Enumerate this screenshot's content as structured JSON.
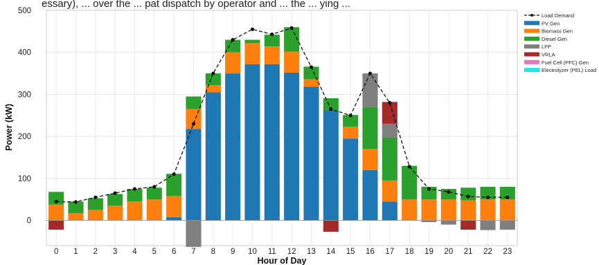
{
  "chart_data": {
    "type": "bar",
    "xlabel": "Hour of Day",
    "ylabel": "Power (kW)",
    "ylim": [
      -60,
      500
    ],
    "yticks": [
      0,
      100,
      200,
      300,
      400,
      500
    ],
    "grid": true,
    "legend_position": "right",
    "partial_text": "essary), ... over the ... pat dispatch by operator and ... the ... ying ...",
    "categories": [
      "0",
      "1",
      "2",
      "3",
      "4",
      "5",
      "6",
      "7",
      "8",
      "9",
      "10",
      "11",
      "12",
      "13",
      "14",
      "15",
      "16",
      "17",
      "18",
      "19",
      "20",
      "21",
      "22",
      "23"
    ],
    "series": [
      {
        "name": "PV Gen",
        "color": "#1f77b4",
        "values": [
          0,
          0,
          0,
          0,
          0,
          0,
          8,
          218,
          305,
          350,
          372,
          372,
          352,
          318,
          263,
          195,
          120,
          45,
          0,
          0,
          0,
          0,
          0,
          0
        ]
      },
      {
        "name": "Biomass Gen",
        "color": "#ff7f0e",
        "values": [
          38,
          17,
          25,
          35,
          45,
          50,
          50,
          47,
          17,
          50,
          50,
          42,
          50,
          18,
          0,
          28,
          50,
          50,
          50,
          50,
          50,
          48,
          50,
          50
        ]
      },
      {
        "name": "Diesel Gen",
        "color": "#2ca02c",
        "values": [
          30,
          28,
          28,
          28,
          30,
          28,
          53,
          30,
          28,
          30,
          8,
          28,
          58,
          30,
          28,
          28,
          100,
          102,
          80,
          30,
          25,
          30,
          30,
          30
        ]
      },
      {
        "name": "LFP",
        "color": "#7f7f7f",
        "values": [
          0,
          0,
          0,
          0,
          0,
          0,
          0,
          -63,
          0,
          0,
          0,
          0,
          0,
          0,
          0,
          0,
          80,
          33,
          0,
          -4,
          -10,
          0,
          -23,
          -22
        ]
      },
      {
        "name": "VRLA",
        "color": "#a52a2a",
        "values": [
          -22,
          0,
          0,
          0,
          0,
          0,
          0,
          0,
          0,
          0,
          0,
          0,
          0,
          0,
          -27,
          0,
          0,
          52,
          0,
          0,
          0,
          -22,
          0,
          0
        ]
      },
      {
        "name": "Fuel Cell (PFC) Gen",
        "color": "#e377c2",
        "values": [
          0,
          0,
          0,
          0,
          0,
          0,
          0,
          0,
          0,
          0,
          0,
          0,
          0,
          0,
          0,
          0,
          0,
          0,
          0,
          0,
          0,
          0,
          0,
          0
        ]
      },
      {
        "name": "Electrolyzer (PEL) Load",
        "color": "#17e8e8",
        "values": [
          0,
          0,
          0,
          0,
          0,
          0,
          0,
          0,
          0,
          0,
          0,
          0,
          0,
          0,
          0,
          0,
          0,
          0,
          0,
          0,
          0,
          0,
          0,
          0
        ]
      }
    ],
    "line": {
      "name": "Load Demand",
      "color": "#111111",
      "values": [
        45,
        44,
        55,
        65,
        75,
        80,
        110,
        230,
        350,
        430,
        455,
        443,
        458,
        365,
        265,
        250,
        350,
        280,
        128,
        75,
        68,
        57,
        55,
        55
      ]
    }
  }
}
